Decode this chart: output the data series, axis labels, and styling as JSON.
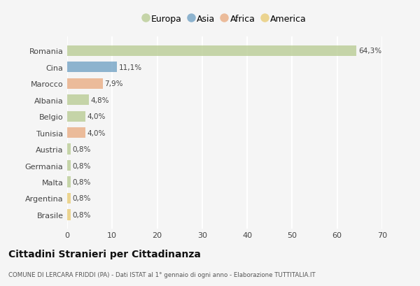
{
  "countries": [
    "Romania",
    "Cina",
    "Marocco",
    "Albania",
    "Belgio",
    "Tunisia",
    "Austria",
    "Germania",
    "Malta",
    "Argentina",
    "Brasile"
  ],
  "values": [
    64.3,
    11.1,
    7.9,
    4.8,
    4.0,
    4.0,
    0.8,
    0.8,
    0.8,
    0.8,
    0.8
  ],
  "labels": [
    "64,3%",
    "11,1%",
    "7,9%",
    "4,8%",
    "4,0%",
    "4,0%",
    "0,8%",
    "0,8%",
    "0,8%",
    "0,8%",
    "0,8%"
  ],
  "colors": [
    "#b5c98e",
    "#6b9dc2",
    "#e8a87c",
    "#b5c98e",
    "#b5c98e",
    "#e8a87c",
    "#b5c98e",
    "#b5c98e",
    "#b5c98e",
    "#e8c96e",
    "#e8c96e"
  ],
  "legend_labels": [
    "Europa",
    "Asia",
    "Africa",
    "America"
  ],
  "legend_colors": [
    "#b5c98e",
    "#6b9dc2",
    "#e8a87c",
    "#e8c96e"
  ],
  "title": "Cittadini Stranieri per Cittadinanza",
  "subtitle": "COMUNE DI LERCARA FRIDDI (PA) - Dati ISTAT al 1° gennaio di ogni anno - Elaborazione TUTTITALIA.IT",
  "xlim": [
    0,
    70
  ],
  "xticks": [
    0,
    10,
    20,
    30,
    40,
    50,
    60,
    70
  ],
  "bg_color": "#f5f5f5",
  "grid_color": "#ffffff",
  "bar_height": 0.65,
  "bar_alpha": 0.75
}
